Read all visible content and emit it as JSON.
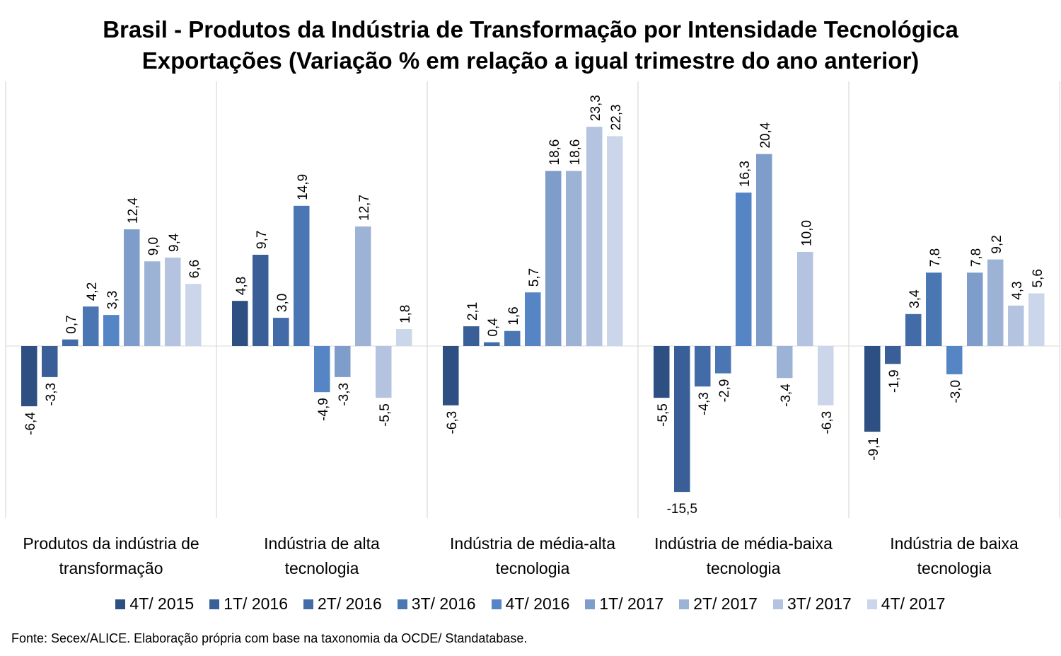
{
  "chart_data": {
    "type": "bar",
    "title": "Brasil - Produtos da Indústria de Transformação por Intensidade Tecnológica",
    "subtitle": "Exportações (Variação % em relação a igual trimestre do ano anterior)",
    "categories": [
      [
        "Produtos da indústria de",
        "transformação"
      ],
      [
        "Indústria de alta",
        "tecnologia"
      ],
      [
        "Indústria de média-alta",
        "tecnologia"
      ],
      [
        "Indústria de média-baixa",
        "tecnologia"
      ],
      [
        "Indústria de baixa",
        "tecnologia"
      ]
    ],
    "series": [
      {
        "name": "4T/ 2015",
        "color": "#2E4F82",
        "values": [
          -6.4,
          4.8,
          -6.3,
          -5.5,
          -9.1
        ],
        "labels": [
          "-6,4",
          "4,8",
          "-6,3",
          "-5,5",
          "-9,1"
        ]
      },
      {
        "name": "1T/ 2016",
        "color": "#3A5F98",
        "values": [
          -3.3,
          9.7,
          2.1,
          -15.5,
          -1.9
        ],
        "labels": [
          "-3,3",
          "9,7",
          "2,1",
          "-15,5",
          "-1,9"
        ]
      },
      {
        "name": "2T/ 2016",
        "color": "#426BA8",
        "values": [
          0.7,
          3.0,
          0.4,
          -4.3,
          3.4
        ],
        "labels": [
          "0,7",
          "3,0",
          "0,4",
          "-4,3",
          "3,4"
        ]
      },
      {
        "name": "3T/ 2016",
        "color": "#4A76B4",
        "values": [
          4.2,
          14.9,
          1.6,
          -2.9,
          7.8
        ],
        "labels": [
          "4,2",
          "14,9",
          "1,6",
          "-2,9",
          "7,8"
        ]
      },
      {
        "name": "4T/ 2016",
        "color": "#5585C4",
        "values": [
          3.3,
          -4.9,
          5.7,
          16.3,
          -3.0
        ],
        "labels": [
          "3,3",
          "-4,9",
          "5,7",
          "16,3",
          "-3,0"
        ]
      },
      {
        "name": "1T/ 2017",
        "color": "#7F9DCB",
        "values": [
          12.4,
          -3.3,
          18.6,
          20.4,
          7.8
        ],
        "labels": [
          "12,4",
          "-3,3",
          "18,6",
          "20,4",
          "7,8"
        ]
      },
      {
        "name": "2T/ 2017",
        "color": "#9DB3D6",
        "values": [
          9.0,
          12.7,
          18.6,
          -3.4,
          9.2
        ],
        "labels": [
          "9,0",
          "12,7",
          "18,6",
          "-3,4",
          "9,2"
        ]
      },
      {
        "name": "3T/ 2017",
        "color": "#B4C4E0",
        "values": [
          9.4,
          -5.5,
          23.3,
          10.0,
          4.3
        ],
        "labels": [
          "9,4",
          "-5,5",
          "23,3",
          "10,0",
          "4,3"
        ]
      },
      {
        "name": "4T/ 2017",
        "color": "#CCD6EA",
        "values": [
          6.6,
          1.8,
          22.3,
          -6.3,
          5.6
        ],
        "labels": [
          "6,6",
          "1,8",
          "22,3",
          "-6,3",
          "5,6"
        ]
      }
    ],
    "ylim": [
      -18,
      28
    ],
    "grid": false,
    "legend": "bottom"
  },
  "source": "Fonte: Secex/ALICE. Elaboração própria com base na taxonomia da OCDE/ Standatabase."
}
